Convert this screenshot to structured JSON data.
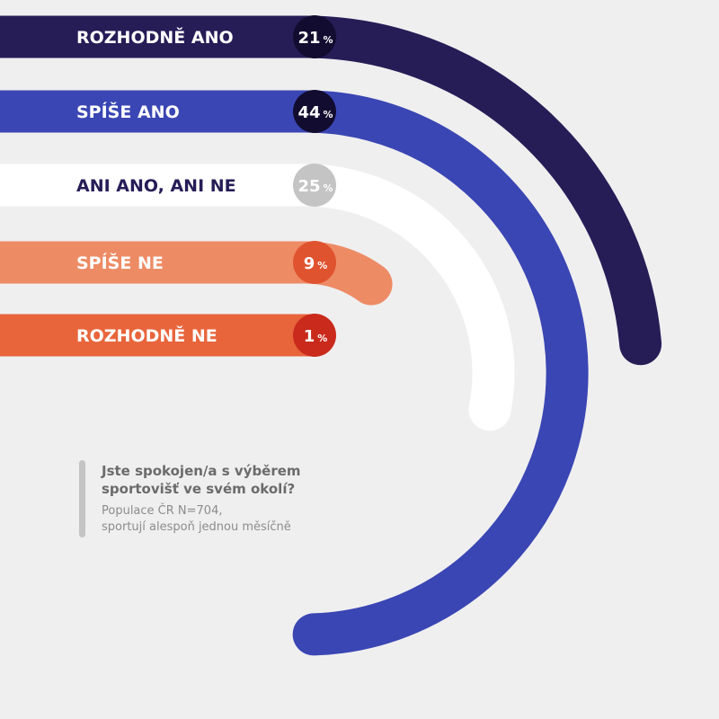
{
  "chart_data": {
    "type": "radial bar",
    "categories": [
      "ROZHODNĚ ANO",
      "SPÍŠE ANO",
      "ANI ANO, ANI NE",
      "SPÍŠE NE",
      "ROZHODNĚ NE"
    ],
    "values": [
      21,
      44,
      25,
      9,
      1
    ],
    "unit": "%",
    "colors": [
      "#261d57",
      "#3a46b3",
      "#ffffff",
      "#ed8b65",
      "#e8653c"
    ],
    "label_colors": [
      "#ffffff",
      "#ffffff",
      "#261d57",
      "#ffffff",
      "#ffffff"
    ],
    "badge_colors": [
      "#120c30",
      "#120c30",
      "#c4c4c4",
      "#e0532f",
      "#c92a1b"
    ],
    "badge_text_colors": [
      "#ffffff",
      "#ffffff",
      "#ffffff",
      "#ffffff",
      "#ffffff"
    ]
  },
  "note": {
    "question": "Jste spokojen/a s výběrem sportovišť ve svém okolí?",
    "base": "Populace ČR N=704,\nsportují alespoň jednou měsíčně"
  }
}
